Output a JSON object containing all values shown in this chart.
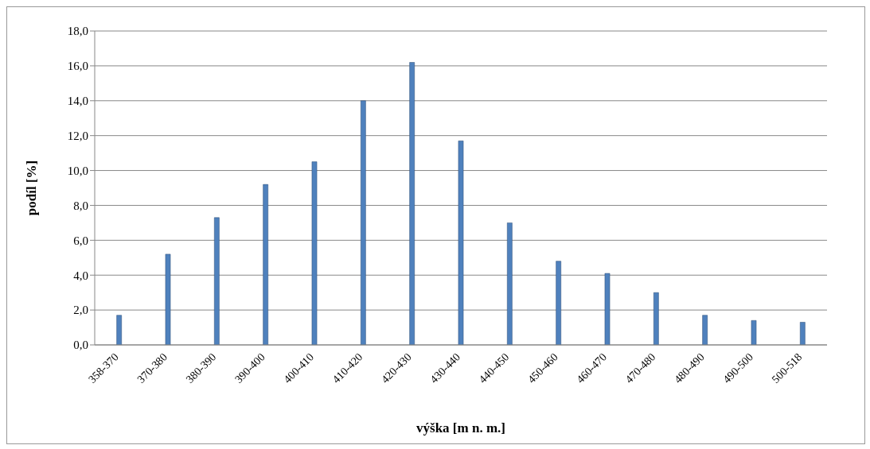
{
  "chart_data": {
    "type": "bar",
    "xlabel": "výška [m n. m.]",
    "ylabel": "podíl [%]",
    "categories": [
      "358-370",
      "370-380",
      "380-390",
      "390-400",
      "400-410",
      "410-420",
      "420-430",
      "430-440",
      "440-450",
      "450-460",
      "460-470",
      "470-480",
      "480-490",
      "490-500",
      "500-518"
    ],
    "values": [
      1.7,
      5.2,
      7.3,
      9.2,
      10.5,
      14.0,
      16.2,
      11.7,
      7.0,
      4.8,
      4.1,
      3.0,
      1.7,
      1.4,
      1.3
    ],
    "color": "#4f81bd",
    "ylim": [
      0,
      18
    ],
    "yticks": [
      {
        "value": 0,
        "label": "0,0"
      },
      {
        "value": 2,
        "label": "2,0"
      },
      {
        "value": 4,
        "label": "4,0"
      },
      {
        "value": 6,
        "label": "6,0"
      },
      {
        "value": 8,
        "label": "8,0"
      },
      {
        "value": 10,
        "label": "10,0"
      },
      {
        "value": 12,
        "label": "12,0"
      },
      {
        "value": 14,
        "label": "14,0"
      },
      {
        "value": 16,
        "label": "16,0"
      },
      {
        "value": 18,
        "label": "18,0"
      }
    ],
    "grid": "y"
  }
}
